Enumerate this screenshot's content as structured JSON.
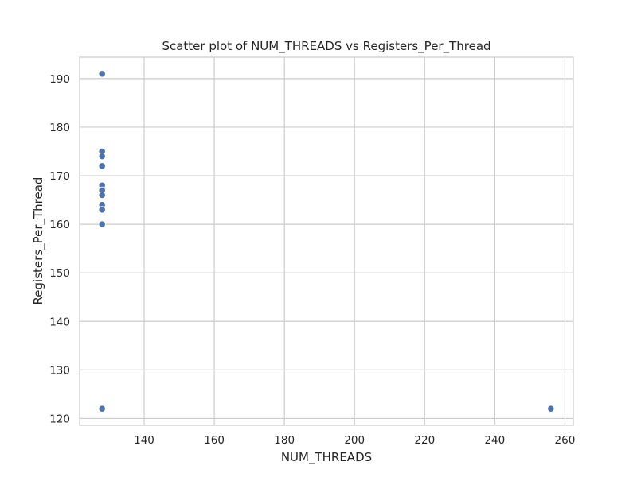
{
  "chart_data": {
    "type": "scatter",
    "title": "Scatter plot of NUM_THREADS vs Registers_Per_Thread",
    "xlabel": "NUM_THREADS",
    "ylabel": "Registers_Per_Thread",
    "xlim": [
      121.6,
      262.4
    ],
    "ylim": [
      118.6,
      194.4
    ],
    "xticks": [
      140,
      160,
      180,
      200,
      220,
      240,
      260
    ],
    "yticks": [
      120,
      130,
      140,
      150,
      160,
      170,
      180,
      190
    ],
    "grid": true,
    "point_color": "#4c72b0",
    "points": [
      {
        "x": 128,
        "y": 191
      },
      {
        "x": 128,
        "y": 175
      },
      {
        "x": 128,
        "y": 174
      },
      {
        "x": 128,
        "y": 172
      },
      {
        "x": 128,
        "y": 168
      },
      {
        "x": 128,
        "y": 167
      },
      {
        "x": 128,
        "y": 166
      },
      {
        "x": 128,
        "y": 164
      },
      {
        "x": 128,
        "y": 163
      },
      {
        "x": 128,
        "y": 160
      },
      {
        "x": 128,
        "y": 122
      },
      {
        "x": 256,
        "y": 122
      }
    ]
  }
}
